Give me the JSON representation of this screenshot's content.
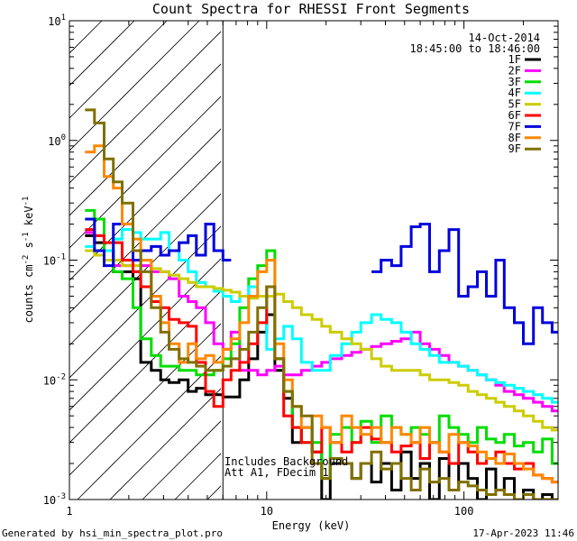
{
  "chart_data": {
    "type": "line",
    "subtype": "step",
    "title": "Count Spectra for RHESSI Front Segments",
    "xlabel": "Energy (keV)",
    "ylabel_parts": [
      "counts cm",
      "-2",
      " s",
      "-1",
      " keV",
      "-1"
    ],
    "x_scale": "log",
    "y_scale": "log",
    "xlim": [
      1,
      300
    ],
    "ylim": [
      0.001,
      10
    ],
    "x_tick_labels": [
      {
        "value": 1,
        "label": "1"
      },
      {
        "value": 10,
        "label": "10"
      },
      {
        "value": 100,
        "label": "100"
      }
    ],
    "y_tick_labels": [
      {
        "value": 10,
        "base": "10",
        "exp": "1"
      },
      {
        "value": 1,
        "base": "10",
        "exp": "0"
      },
      {
        "value": 0.1,
        "base": "10",
        "exp": "-1"
      },
      {
        "value": 0.01,
        "base": "10",
        "exp": "-2"
      },
      {
        "value": 0.001,
        "base": "10",
        "exp": "-3"
      }
    ],
    "date": "14-Oct-2014",
    "time_range": "18:45:00 to 18:46:00",
    "hatched_region_max_keV": 6,
    "annotations": [
      "Includes Background",
      "Att A1, FDecim 1"
    ],
    "footer_left": "Generated by hsi_min_spectra_plot.pro",
    "footer_right": "17-Apr-2023 11:46",
    "series": [
      {
        "name": "1F",
        "color": "#000000",
        "x": [
          1.2,
          1.34,
          1.5,
          1.67,
          1.85,
          2.1,
          2.3,
          2.6,
          2.9,
          3.2,
          3.6,
          4.0,
          4.4,
          4.9,
          5.4,
          6.0,
          6.6,
          7.3,
          8.1,
          9.0,
          10.0,
          11.0,
          12.2,
          13.5,
          15,
          17,
          19,
          21,
          24,
          27,
          30,
          34,
          38,
          43,
          48,
          54,
          60,
          67,
          75,
          84,
          94,
          105,
          117,
          130,
          145,
          160,
          180,
          200,
          225,
          250,
          280
        ],
        "y": [
          0.16,
          0.14,
          0.12,
          0.08,
          0.08,
          0.07,
          0.014,
          0.012,
          0.01,
          0.0095,
          0.01,
          0.008,
          0.0085,
          0.0075,
          0.0075,
          0.0072,
          0.0072,
          0.01,
          0.015,
          0.025,
          0.035,
          0.012,
          0.007,
          0.003,
          0.004,
          0.0025,
          0.001,
          0.002,
          0.002,
          0.0015,
          0.002,
          0.0014,
          0.002,
          0.0012,
          0.0025,
          0.0015,
          0.002,
          0.001,
          0.0022,
          0.0012,
          0.002,
          0.0015,
          0.001,
          0.0018,
          0.0012,
          0.0015,
          0.001,
          0.0012,
          0.001,
          0.0011,
          0.001
        ]
      },
      {
        "name": "2F",
        "color": "#ff00ff",
        "x": [
          1.2,
          1.34,
          1.5,
          1.67,
          1.85,
          2.1,
          2.3,
          2.6,
          2.9,
          3.2,
          3.6,
          4.0,
          4.4,
          4.9,
          5.4,
          6.0,
          6.6,
          7.3,
          8.1,
          9.0,
          10.0,
          11.0,
          12.2,
          13.5,
          15,
          17,
          19,
          21,
          24,
          27,
          30,
          34,
          38,
          43,
          48,
          54,
          60,
          67,
          75,
          84,
          94,
          105,
          117,
          130,
          145,
          160,
          180,
          200,
          225,
          250,
          280
        ],
        "y": [
          0.17,
          0.16,
          0.12,
          0.09,
          0.09,
          0.08,
          0.09,
          0.08,
          0.08,
          0.07,
          0.05,
          0.045,
          0.04,
          0.03,
          0.02,
          0.018,
          0.025,
          0.012,
          0.012,
          0.011,
          0.012,
          0.013,
          0.011,
          0.011,
          0.012,
          0.013,
          0.014,
          0.015,
          0.016,
          0.017,
          0.018,
          0.019,
          0.02,
          0.021,
          0.022,
          0.025,
          0.02,
          0.018,
          0.016,
          0.014,
          0.013,
          0.012,
          0.011,
          0.01,
          0.009,
          0.008,
          0.0075,
          0.007,
          0.0065,
          0.006,
          0.0055
        ]
      },
      {
        "name": "3F",
        "color": "#00dd00",
        "x": [
          1.2,
          1.34,
          1.5,
          1.67,
          1.85,
          2.1,
          2.3,
          2.6,
          2.9,
          3.2,
          3.6,
          4.0,
          4.4,
          4.9,
          5.4,
          6.0,
          6.6,
          7.3,
          8.1,
          9.0,
          10.0,
          11.0,
          12.2,
          13.5,
          15,
          17,
          19,
          21,
          24,
          27,
          30,
          34,
          38,
          43,
          48,
          54,
          60,
          67,
          75,
          84,
          94,
          105,
          117,
          130,
          145,
          160,
          180,
          200,
          225,
          250,
          280
        ],
        "y": [
          0.26,
          0.22,
          0.12,
          0.08,
          0.07,
          0.04,
          0.022,
          0.016,
          0.013,
          0.013,
          0.012,
          0.012,
          0.011,
          0.011,
          0.012,
          0.015,
          0.02,
          0.04,
          0.07,
          0.09,
          0.12,
          0.015,
          0.008,
          0.004,
          0.003,
          0.003,
          0.0015,
          0.0035,
          0.004,
          0.003,
          0.0045,
          0.003,
          0.005,
          0.004,
          0.0035,
          0.004,
          0.0035,
          0.003,
          0.005,
          0.004,
          0.0035,
          0.003,
          0.004,
          0.0032,
          0.003,
          0.0035,
          0.0028,
          0.003,
          0.0025,
          0.0032,
          0.002
        ]
      },
      {
        "name": "4F",
        "color": "#00ffff",
        "x": [
          1.2,
          1.34,
          1.5,
          1.67,
          1.85,
          2.1,
          2.3,
          2.6,
          2.9,
          3.2,
          3.6,
          4.0,
          4.4,
          4.9,
          5.4,
          6.0,
          6.6,
          7.3,
          8.1,
          9.0,
          10.0,
          11.0,
          12.2,
          13.5,
          15,
          17,
          19,
          21,
          24,
          27,
          30,
          34,
          38,
          43,
          48,
          54,
          60,
          67,
          75,
          84,
          94,
          105,
          117,
          130,
          145,
          160,
          180,
          200,
          225,
          250,
          280
        ],
        "y": [
          0.13,
          0.12,
          0.12,
          0.15,
          0.18,
          0.17,
          0.15,
          0.15,
          0.17,
          0.12,
          0.1,
          0.08,
          0.065,
          0.06,
          0.055,
          0.05,
          0.045,
          0.05,
          0.06,
          0.05,
          0.018,
          0.022,
          0.028,
          0.022,
          0.014,
          0.012,
          0.012,
          0.016,
          0.02,
          0.025,
          0.03,
          0.035,
          0.032,
          0.03,
          0.025,
          0.02,
          0.018,
          0.016,
          0.014,
          0.014,
          0.013,
          0.012,
          0.011,
          0.01,
          0.0095,
          0.009,
          0.0085,
          0.008,
          0.0075,
          0.007,
          0.0065
        ]
      },
      {
        "name": "5F",
        "color": "#cccc00",
        "x": [
          1.2,
          1.34,
          1.5,
          1.67,
          1.85,
          2.1,
          2.3,
          2.6,
          2.9,
          3.2,
          3.6,
          4.0,
          4.4,
          4.9,
          5.4,
          6.0,
          6.6,
          7.3,
          8.1,
          9.0,
          10.0,
          11.0,
          12.2,
          13.5,
          15,
          17,
          19,
          21,
          24,
          27,
          30,
          34,
          38,
          43,
          48,
          54,
          60,
          67,
          75,
          84,
          94,
          105,
          117,
          130,
          145,
          160,
          180,
          200,
          225,
          250,
          280
        ],
        "y": [
          0.12,
          0.11,
          0.1,
          0.1,
          0.09,
          0.09,
          0.1,
          0.085,
          0.08,
          0.075,
          0.07,
          0.065,
          0.06,
          0.06,
          0.058,
          0.056,
          0.054,
          0.05,
          0.048,
          0.05,
          0.05,
          0.052,
          0.045,
          0.04,
          0.035,
          0.032,
          0.028,
          0.025,
          0.022,
          0.02,
          0.018,
          0.015,
          0.013,
          0.012,
          0.012,
          0.012,
          0.011,
          0.01,
          0.01,
          0.0095,
          0.009,
          0.008,
          0.0075,
          0.007,
          0.0065,
          0.006,
          0.0055,
          0.005,
          0.0045,
          0.004,
          0.0038
        ]
      },
      {
        "name": "6F",
        "color": "#ff0000",
        "x": [
          1.2,
          1.34,
          1.5,
          1.67,
          1.85,
          2.1,
          2.3,
          2.6,
          2.9,
          3.2,
          3.6,
          4.0,
          4.4,
          4.9,
          5.4,
          6.0,
          6.6,
          7.3,
          8.1,
          9.0,
          10.0,
          11.0,
          12.2,
          13.5,
          15,
          17,
          19,
          21,
          24,
          27,
          30,
          34,
          38,
          43,
          48,
          54,
          60,
          67,
          75,
          84,
          94,
          105,
          117,
          130,
          145,
          160,
          180,
          200,
          225,
          250,
          280
        ],
        "y": [
          0.18,
          0.16,
          0.14,
          0.14,
          0.1,
          0.08,
          0.06,
          0.045,
          0.04,
          0.032,
          0.03,
          0.028,
          0.014,
          0.008,
          0.006,
          0.01,
          0.012,
          0.014,
          0.02,
          0.03,
          0.06,
          0.015,
          0.005,
          0.004,
          0.003,
          0.0025,
          0.004,
          0.003,
          0.0025,
          0.003,
          0.004,
          0.0032,
          0.003,
          0.0025,
          0.0028,
          0.003,
          0.0022,
          0.003,
          0.0025,
          0.002,
          0.003,
          0.0025,
          0.002,
          0.0022,
          0.0025,
          0.002,
          0.0018,
          0.002,
          0.0016,
          0.0015,
          0.0014
        ]
      },
      {
        "name": "7F",
        "color": "#0000dd",
        "x": [
          1.2,
          1.34,
          1.5,
          1.67,
          1.85,
          2.1,
          2.3,
          2.6,
          2.9,
          3.2,
          3.6,
          4.0,
          4.4,
          4.9,
          5.4,
          6.0,
          6.6,
          7.3,
          8.1,
          9.0,
          10.0,
          11.0,
          12.2,
          13.5,
          15,
          17,
          19,
          21,
          24,
          27,
          30,
          34,
          38,
          43,
          48,
          54,
          60,
          67,
          75,
          84,
          94,
          105,
          117,
          130,
          145,
          160,
          180,
          200,
          225,
          250,
          280
        ],
        "y": [
          0.22,
          0.12,
          0.09,
          0.2,
          0.2,
          0.1,
          0.12,
          0.13,
          0.11,
          0.12,
          0.14,
          0.16,
          0.11,
          0.2,
          0.12,
          0.1,
          null,
          null,
          null,
          null,
          null,
          null,
          null,
          null,
          null,
          null,
          null,
          null,
          null,
          null,
          null,
          0.08,
          0.1,
          0.09,
          0.13,
          0.19,
          0.2,
          0.08,
          0.12,
          0.18,
          0.05,
          0.06,
          0.08,
          0.05,
          0.1,
          0.04,
          0.03,
          0.02,
          0.04,
          0.03,
          0.025
        ]
      },
      {
        "name": "8F",
        "color": "#ff8800",
        "x": [
          1.2,
          1.34,
          1.5,
          1.67,
          1.85,
          2.1,
          2.3,
          2.6,
          2.9,
          3.2,
          3.6,
          4.0,
          4.4,
          4.9,
          5.4,
          6.0,
          6.6,
          7.3,
          8.1,
          9.0,
          10.0,
          11.0,
          12.2,
          13.5,
          15,
          17,
          19,
          21,
          24,
          27,
          30,
          34,
          38,
          43,
          48,
          54,
          60,
          67,
          75,
          84,
          94,
          105,
          117,
          130,
          145,
          160,
          180,
          200,
          225,
          250,
          280
        ],
        "y": [
          0.8,
          0.9,
          0.5,
          0.4,
          0.2,
          0.15,
          0.1,
          0.05,
          0.03,
          0.02,
          0.014,
          0.02,
          0.015,
          0.016,
          0.014,
          0.018,
          0.022,
          0.03,
          0.05,
          0.08,
          0.1,
          0.02,
          0.01,
          0.006,
          0.004,
          0.005,
          0.004,
          0.003,
          0.005,
          0.004,
          0.0035,
          0.004,
          0.003,
          0.004,
          0.0035,
          0.003,
          0.004,
          0.003,
          0.0025,
          0.0035,
          0.003,
          0.0028,
          0.0025,
          0.0022,
          0.002,
          0.0024,
          0.002,
          0.0018,
          0.0016,
          0.0015,
          0.0014
        ]
      },
      {
        "name": "9F",
        "color": "#807000",
        "x": [
          1.2,
          1.34,
          1.5,
          1.67,
          1.85,
          2.1,
          2.3,
          2.6,
          2.9,
          3.2,
          3.6,
          4.0,
          4.4,
          4.9,
          5.4,
          6.0,
          6.6,
          7.3,
          8.1,
          9.0,
          10.0,
          11.0,
          12.2,
          13.5,
          15,
          17,
          19,
          21,
          24,
          27,
          30,
          34,
          38,
          43,
          48,
          54,
          60,
          67,
          75,
          84,
          94,
          105,
          117,
          130,
          145,
          160,
          180,
          200,
          225,
          250,
          280
        ],
        "y": [
          1.8,
          1.4,
          0.7,
          0.45,
          0.3,
          0.12,
          0.08,
          0.04,
          0.025,
          0.018,
          0.015,
          0.014,
          0.013,
          0.012,
          0.012,
          0.013,
          0.015,
          0.018,
          0.025,
          0.04,
          0.06,
          0.015,
          0.008,
          0.006,
          0.005,
          0.002,
          0.0015,
          0.0022,
          0.002,
          0.0015,
          0.002,
          0.0025,
          0.0018,
          0.002,
          0.0015,
          0.0012,
          0.0018,
          0.0014,
          0.0015,
          0.0012,
          0.0014,
          0.0013,
          0.0012,
          0.0011,
          0.0012,
          0.0011,
          0.001,
          0.0011,
          0.001,
          0.001,
          0.001
        ]
      }
    ]
  }
}
